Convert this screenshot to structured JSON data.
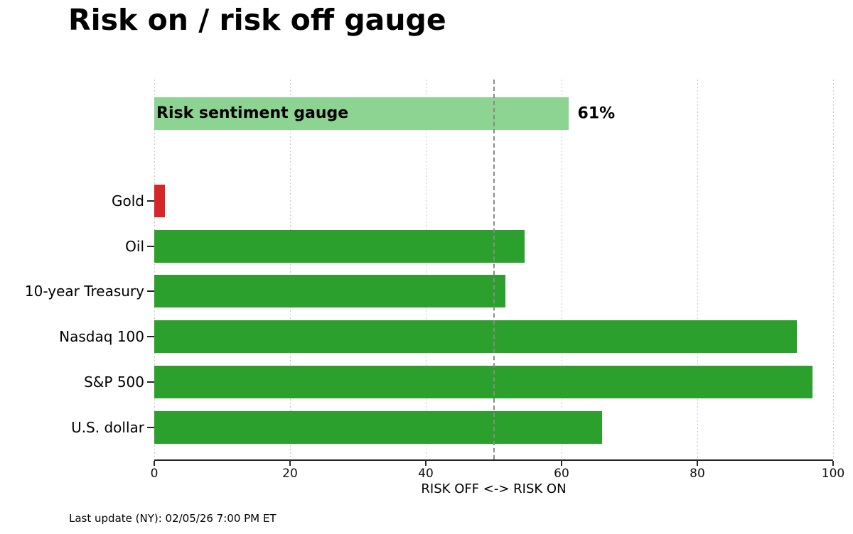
{
  "chart_data": {
    "type": "bar",
    "orientation": "horizontal",
    "title": "Risk on / risk off gauge",
    "xlabel": "RISK OFF <-> RISK ON",
    "xlim": [
      0,
      100
    ],
    "xticks": [
      0,
      20,
      40,
      60,
      80,
      100
    ],
    "grid": "dotted vertical gridlines at each x tick",
    "legend": "none",
    "threshold_line": {
      "x": 50,
      "style": "dashed",
      "color": "#8a8a8a"
    },
    "gauge": {
      "label": "Risk sentiment gauge",
      "value": 61,
      "value_label": "61%",
      "color": "#8dd392"
    },
    "categories": [
      {
        "label": "Gold",
        "value": 1.6,
        "color": "#d62728"
      },
      {
        "label": "Oil",
        "value": 54.6,
        "color": "#2ca02c"
      },
      {
        "label": "10-year Treasury",
        "value": 51.7,
        "color": "#2ca02c"
      },
      {
        "label": "Nasdaq 100",
        "value": 94.7,
        "color": "#2ca02c"
      },
      {
        "label": "S&P 500",
        "value": 97,
        "color": "#2ca02c"
      },
      {
        "label": "U.S. dollar",
        "value": 66,
        "color": "#2ca02c"
      }
    ],
    "colors": {
      "risk_on": "#2ca02c",
      "risk_off": "#d62728",
      "gauge": "#8dd392"
    }
  },
  "footer": {
    "last_update": "Last update (NY): 02/05/26 7:00 PM ET"
  }
}
